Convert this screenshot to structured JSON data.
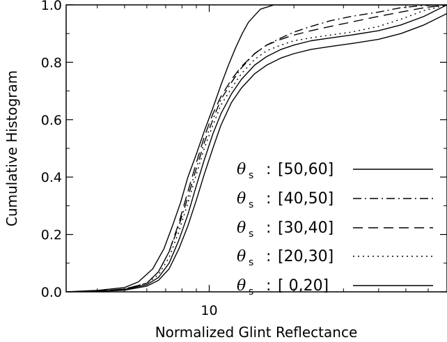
{
  "chart_data": {
    "type": "line",
    "xlabel": "Normalized Glint Reflectance",
    "ylabel": "Cumulative Histogram",
    "x_scale": "log",
    "xlim": [
      3.1,
      70
    ],
    "ylim": [
      0.0,
      1.0
    ],
    "x_tick_labels": [
      {
        "value": 10,
        "label": "10"
      }
    ],
    "y_tick_labels": [
      "0.0",
      "0.2",
      "0.4",
      "0.6",
      "0.8",
      "1.0"
    ],
    "y_ticks": [
      0.0,
      0.2,
      0.4,
      0.6,
      0.8,
      1.0
    ],
    "grid": false,
    "legend_position": "bottom-right",
    "legend_symbol": "θ",
    "legend_subscript": "s",
    "series": [
      {
        "name": "[50,60]",
        "dash": "solid",
        "x": [
          3.1,
          4.0,
          5.0,
          5.6,
          6.3,
          6.9,
          7.4,
          7.9,
          8.4,
          9.0,
          9.6,
          10.3,
          11.0,
          11.7,
          12.4,
          13.1,
          13.8,
          15.2,
          17.0,
          20.0,
          25.0,
          30.0,
          40.0,
          55.0,
          70.0
        ],
        "y": [
          0.0,
          0.005,
          0.015,
          0.035,
          0.08,
          0.15,
          0.23,
          0.31,
          0.4,
          0.48,
          0.56,
          0.64,
          0.72,
          0.79,
          0.85,
          0.9,
          0.94,
          0.985,
          1.0,
          1.0,
          1.0,
          1.0,
          1.0,
          1.0,
          1.0
        ]
      },
      {
        "name": "[40,50]",
        "dash": "dashdot",
        "x": [
          3.1,
          4.0,
          5.0,
          6.0,
          6.6,
          7.2,
          7.8,
          8.4,
          9.0,
          9.6,
          10.3,
          11.0,
          12.0,
          13.0,
          14.5,
          16.0,
          18.0,
          20.0,
          23.0,
          27.0,
          32.0,
          40.0,
          48.0,
          58.0,
          70.0
        ],
        "y": [
          0.0,
          0.002,
          0.01,
          0.03,
          0.07,
          0.14,
          0.23,
          0.33,
          0.43,
          0.52,
          0.6,
          0.67,
          0.73,
          0.78,
          0.83,
          0.86,
          0.885,
          0.905,
          0.925,
          0.945,
          0.96,
          0.975,
          0.99,
          0.998,
          1.0
        ]
      },
      {
        "name": "[30,40]",
        "dash": "dashed",
        "x": [
          3.1,
          4.0,
          5.0,
          6.0,
          6.6,
          7.2,
          7.8,
          8.4,
          9.0,
          9.6,
          10.3,
          11.0,
          12.0,
          13.0,
          14.5,
          16.0,
          18.0,
          20.0,
          23.0,
          27.0,
          32.0,
          40.0,
          48.0,
          58.0,
          70.0
        ],
        "y": [
          0.0,
          0.002,
          0.01,
          0.03,
          0.07,
          0.14,
          0.24,
          0.35,
          0.45,
          0.54,
          0.62,
          0.68,
          0.74,
          0.785,
          0.83,
          0.86,
          0.88,
          0.895,
          0.91,
          0.925,
          0.94,
          0.96,
          0.975,
          0.99,
          1.0
        ]
      },
      {
        "name": "[20,30]",
        "dash": "dotted",
        "x": [
          3.1,
          4.0,
          5.0,
          6.0,
          6.6,
          7.2,
          7.8,
          8.4,
          9.0,
          9.6,
          10.3,
          11.0,
          12.0,
          13.0,
          14.5,
          16.0,
          18.0,
          20.0,
          23.0,
          27.0,
          32.0,
          40.0,
          48.0,
          58.0,
          70.0
        ],
        "y": [
          0.0,
          0.002,
          0.01,
          0.03,
          0.06,
          0.12,
          0.21,
          0.31,
          0.41,
          0.5,
          0.58,
          0.65,
          0.71,
          0.76,
          0.81,
          0.84,
          0.86,
          0.875,
          0.885,
          0.895,
          0.905,
          0.925,
          0.95,
          0.98,
          1.0
        ]
      },
      {
        "name": "[ 0,20]",
        "dash": "solid",
        "x": [
          3.1,
          4.0,
          5.0,
          6.0,
          6.6,
          7.2,
          7.8,
          8.4,
          9.0,
          9.6,
          10.3,
          11.0,
          12.0,
          13.0,
          14.5,
          16.0,
          18.0,
          20.0,
          23.0,
          27.0,
          32.0,
          40.0,
          48.0,
          58.0,
          70.0
        ],
        "y": [
          0.0,
          0.002,
          0.008,
          0.025,
          0.05,
          0.1,
          0.18,
          0.27,
          0.37,
          0.46,
          0.55,
          0.62,
          0.69,
          0.74,
          0.79,
          0.82,
          0.845,
          0.86,
          0.875,
          0.885,
          0.895,
          0.91,
          0.93,
          0.96,
          1.0
        ]
      },
      {
        "name": "",
        "dash": "solid",
        "x": [
          3.1,
          4.0,
          5.0,
          6.0,
          6.6,
          7.2,
          7.8,
          8.4,
          9.0,
          9.6,
          10.3,
          11.0,
          12.0,
          13.0,
          14.5,
          16.0,
          18.0,
          20.0,
          23.0,
          27.0,
          32.0,
          40.0,
          48.0,
          58.0,
          70.0
        ],
        "y": [
          0.0,
          0.0015,
          0.006,
          0.02,
          0.04,
          0.08,
          0.15,
          0.23,
          0.32,
          0.41,
          0.5,
          0.58,
          0.66,
          0.71,
          0.76,
          0.79,
          0.815,
          0.83,
          0.845,
          0.855,
          0.865,
          0.88,
          0.9,
          0.93,
          0.97
        ]
      }
    ],
    "legend": [
      {
        "series_index": 0,
        "label": "[50,60]"
      },
      {
        "series_index": 1,
        "label": "[40,50]"
      },
      {
        "series_index": 2,
        "label": "[30,40]"
      },
      {
        "series_index": 3,
        "label": "[20,30]"
      },
      {
        "series_index": 4,
        "label": "[ 0,20]"
      }
    ]
  }
}
